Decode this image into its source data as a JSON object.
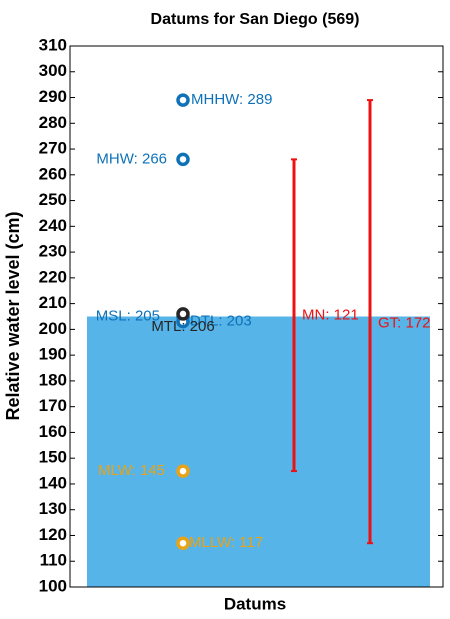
{
  "chart_data": {
    "type": "datum",
    "title": "Datums for San Diego (569)",
    "xlabel": "Datums",
    "ylabel": "Relative water level (cm)",
    "ylim": [
      100,
      310
    ],
    "yticks": [
      100,
      110,
      120,
      130,
      140,
      150,
      160,
      170,
      180,
      190,
      200,
      210,
      220,
      230,
      240,
      250,
      260,
      270,
      280,
      290,
      300,
      310
    ],
    "fill_color": "#56b4e9",
    "points": [
      {
        "label": "MHHW: 289",
        "value": 289,
        "color": "#0f72b8"
      },
      {
        "label": "MHW: 266",
        "value": 266,
        "color": "#0f72b8"
      },
      {
        "label": "MSL: 205",
        "value": 205,
        "color": "#0f72b8"
      },
      {
        "label": "DTL: 203",
        "value": 203,
        "color": "#0f72b8"
      },
      {
        "label": "MTL: 206",
        "value": 206,
        "color": "#262626"
      },
      {
        "label": "MLW: 145",
        "value": 145,
        "color": "#e8a317"
      },
      {
        "label": "MLLW: 117",
        "value": 117,
        "color": "#e8a317"
      }
    ],
    "ranges": [
      {
        "label": "MN: 121",
        "value": 121,
        "low": 145,
        "high": 266,
        "color": "#ee1111"
      },
      {
        "label": "GT: 172",
        "value": 172,
        "low": 117,
        "high": 289,
        "color": "#ee1111"
      }
    ]
  }
}
